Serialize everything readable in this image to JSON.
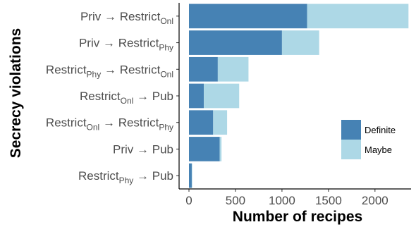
{
  "chart_data": {
    "type": "bar",
    "orientation": "horizontal",
    "stacked": true,
    "categories": [
      {
        "base": "Priv",
        "base_sub": "",
        "target": "Restrict",
        "target_sub": "Onl"
      },
      {
        "base": "Priv",
        "base_sub": "",
        "target": "Restrict",
        "target_sub": "Phy"
      },
      {
        "base": "Restrict",
        "base_sub": "Phy",
        "target": "Restrict",
        "target_sub": "Onl"
      },
      {
        "base": "Restrict",
        "base_sub": "Onl",
        "target": "Pub",
        "target_sub": ""
      },
      {
        "base": "Restrict",
        "base_sub": "Onl",
        "target": "Restrict",
        "target_sub": "Phy"
      },
      {
        "base": "Priv",
        "base_sub": "",
        "target": "Pub",
        "target_sub": ""
      },
      {
        "base": "Restrict",
        "base_sub": "Phy",
        "target": "Pub",
        "target_sub": ""
      }
    ],
    "arrow": "→",
    "series": [
      {
        "name": "Definite",
        "color": "#4682b4",
        "values": [
          1270,
          1000,
          310,
          160,
          260,
          330,
          30
        ]
      },
      {
        "name": "Maybe",
        "color": "#add8e6",
        "values": [
          1090,
          400,
          330,
          380,
          150,
          20,
          5
        ]
      }
    ],
    "xlabel": "Number of recipes",
    "ylabel": "Secrecy violations",
    "xlim": [
      0,
      2400
    ],
    "xticks": [
      0,
      500,
      1000,
      1500,
      2000
    ],
    "grid": false,
    "legend_position": "bottom-right"
  }
}
